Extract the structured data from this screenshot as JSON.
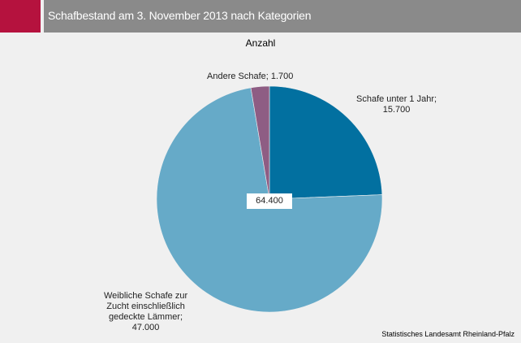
{
  "header": {
    "title": "Schafbestand am 3. November 2013 nach Kategorien"
  },
  "chart_data": {
    "type": "pie",
    "title": "Schafbestand am 3. November 2013 nach Kategorien",
    "subtitle": "Anzahl",
    "slices": [
      {
        "name": "Schafe unter 1 Jahr",
        "value": 15700,
        "label_lines": [
          "Schafe unter 1 Jahr;",
          "15.700"
        ],
        "color": "#0270a0"
      },
      {
        "name": "Weibliche Schafe zur Zucht einschließlich gedeckte Lämmer",
        "value": 47000,
        "label_lines": [
          "Weibliche Schafe zur",
          "Zucht einschließlich",
          "gedeckte Lämmer;",
          "47.000"
        ],
        "color": "#66aac8"
      },
      {
        "name": "Andere Schafe",
        "value": 1700,
        "label_lines": [
          "Andere Schafe; 1.700"
        ],
        "color": "#8e5d84"
      }
    ],
    "total_label": "64.400",
    "legend": "none"
  },
  "footer": {
    "source": "Statistisches Landesamt Rheinland-Pfalz"
  }
}
